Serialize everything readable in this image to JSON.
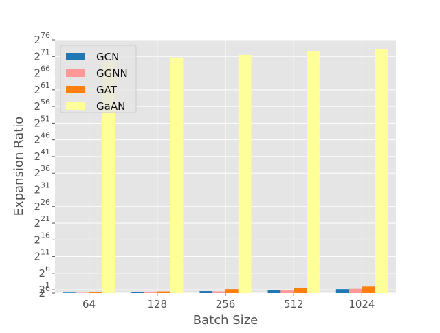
{
  "chart_data": {
    "type": "bar",
    "title": "",
    "xlabel": "Batch Size",
    "ylabel": "Expansion Ratio",
    "categories": [
      "64",
      "128",
      "256",
      "512",
      "1024"
    ],
    "y_scale": "log2",
    "y_ticks": [
      {
        "base": "2",
        "exp": "0",
        "value": 1
      },
      {
        "base": "2",
        "exp": "1",
        "value": 2
      },
      {
        "base": "2",
        "exp": "6",
        "value": 64
      },
      {
        "base": "2",
        "exp": "11",
        "value": 2048
      },
      {
        "base": "2",
        "exp": "16",
        "value": 65536
      },
      {
        "base": "2",
        "exp": "21",
        "value": 2097152
      },
      {
        "base": "2",
        "exp": "26",
        "value": 67108864
      },
      {
        "base": "2",
        "exp": "31",
        "value": 2147483648
      },
      {
        "base": "2",
        "exp": "36",
        "value": 68719476736
      },
      {
        "base": "2",
        "exp": "41",
        "value": 2199023255552
      },
      {
        "base": "2",
        "exp": "46",
        "value": 70368744177664
      },
      {
        "base": "2",
        "exp": "51",
        "value": 2251799813685248
      },
      {
        "base": "2",
        "exp": "56",
        "value": 72057594037927940
      },
      {
        "base": "2",
        "exp": "61",
        "value": 2305843009213694000
      },
      {
        "base": "2",
        "exp": "66",
        "value": 73786976294838210000
      },
      {
        "base": "2",
        "exp": "71",
        "value": 2.3611832414348226e+21
      },
      {
        "base": "2",
        "exp": "76",
        "value": 7.555786372591432e+22
      }
    ],
    "ylim_log2": [
      0,
      76
    ],
    "grid": true,
    "legend_position": "top-left",
    "series_log2": [
      {
        "name": "GCN",
        "color": "#1f77b4",
        "log2_values": [
          0.15,
          0.3,
          0.6,
          0.9,
          1.2
        ]
      },
      {
        "name": "GGNN",
        "color": "#ff9896",
        "log2_values": [
          0.1,
          0.25,
          0.5,
          0.8,
          1.3
        ]
      },
      {
        "name": "GAT",
        "color": "#ff7f0e",
        "log2_values": [
          0.3,
          0.5,
          1.2,
          1.6,
          2.0
        ]
      },
      {
        "name": "GaAN",
        "color": "#ffff99",
        "log2_values": [
          69.5,
          70.7,
          71.5,
          72.5,
          73.2
        ]
      }
    ]
  }
}
